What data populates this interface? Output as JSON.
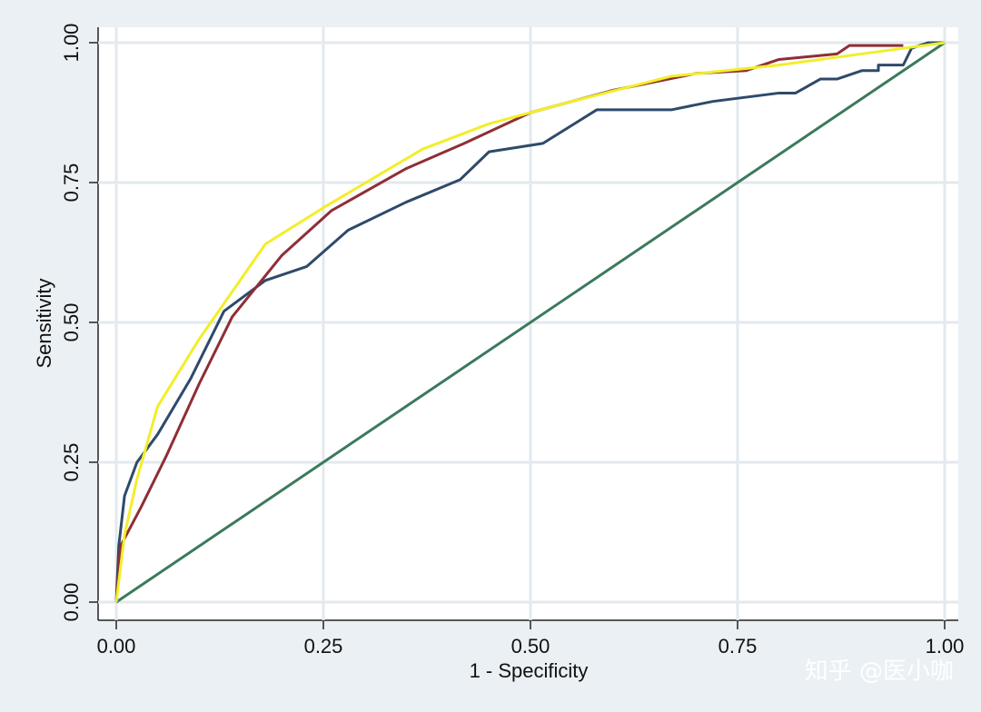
{
  "chart_data": {
    "type": "line",
    "xlabel": "1 - Specificity",
    "ylabel": "Sensitivity",
    "xlim": [
      0,
      1
    ],
    "ylim": [
      0,
      1
    ],
    "xticks": [
      {
        "value": 0,
        "label": "0.00"
      },
      {
        "value": 0.25,
        "label": "0.25"
      },
      {
        "value": 0.5,
        "label": "0.50"
      },
      {
        "value": 0.75,
        "label": "0.75"
      },
      {
        "value": 1,
        "label": "1.00"
      }
    ],
    "yticks": [
      {
        "value": 0,
        "label": "0.00"
      },
      {
        "value": 0.25,
        "label": "0.25"
      },
      {
        "value": 0.5,
        "label": "0.50"
      },
      {
        "value": 0.75,
        "label": "0.75"
      },
      {
        "value": 1,
        "label": "1.00"
      }
    ],
    "grid": true,
    "watermark": "知乎 @医小咖",
    "series": [
      {
        "color": "#2e4a6a",
        "x": [
          0,
          0.003,
          0.01,
          0.025,
          0.05,
          0.09,
          0.13,
          0.18,
          0.23,
          0.28,
          0.35,
          0.415,
          0.45,
          0.515,
          0.58,
          0.67,
          0.72,
          0.8,
          0.82,
          0.85,
          0.87,
          0.9,
          0.92,
          0.92,
          0.95,
          0.96,
          0.98,
          1
        ],
        "values": [
          0,
          0.1,
          0.19,
          0.25,
          0.3,
          0.4,
          0.52,
          0.575,
          0.6,
          0.665,
          0.715,
          0.755,
          0.805,
          0.82,
          0.88,
          0.88,
          0.895,
          0.91,
          0.91,
          0.935,
          0.935,
          0.95,
          0.95,
          0.96,
          0.96,
          0.99,
          1,
          1
        ]
      },
      {
        "color": "#8e2f35",
        "x": [
          0,
          0.005,
          0.03,
          0.06,
          0.1,
          0.14,
          0.2,
          0.26,
          0.35,
          0.42,
          0.5,
          0.6,
          0.7,
          0.76,
          0.8,
          0.87,
          0.885,
          0.95
        ],
        "values": [
          0,
          0.1,
          0.17,
          0.26,
          0.39,
          0.51,
          0.62,
          0.7,
          0.775,
          0.82,
          0.875,
          0.915,
          0.945,
          0.95,
          0.97,
          0.98,
          0.995,
          0.995
        ]
      },
      {
        "color": "#f2ee2a",
        "x": [
          0,
          0.01,
          0.025,
          0.05,
          0.1,
          0.18,
          0.25,
          0.37,
          0.45,
          0.55,
          0.67,
          0.8,
          0.9,
          1
        ],
        "values": [
          0,
          0.12,
          0.22,
          0.35,
          0.47,
          0.64,
          0.705,
          0.81,
          0.855,
          0.895,
          0.94,
          0.96,
          0.98,
          1
        ]
      },
      {
        "color": "#3b7a5c",
        "x": [
          0,
          1
        ],
        "values": [
          0,
          1
        ]
      }
    ]
  }
}
